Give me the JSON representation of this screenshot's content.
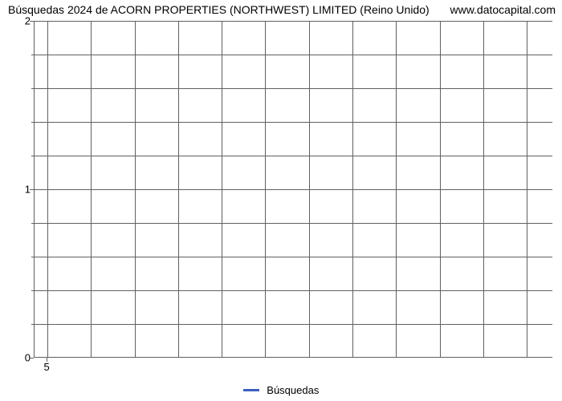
{
  "chart": {
    "type": "line",
    "title_left": "Búsquedas 2024 de ACORN PROPERTIES (NORTHWEST) LIMITED (Reino Unido)",
    "title_right": "www.datocapital.com",
    "title_fontsize": 14,
    "title_color": "#000000",
    "background_color": "#ffffff",
    "axis_color": "#606060",
    "grid_color": "#606060",
    "grid_line_width": 1,
    "y": {
      "min": 0,
      "max": 2,
      "major_ticks": [
        0,
        1,
        2
      ],
      "minor_steps": 5,
      "label_fontsize": 13
    },
    "x": {
      "tick_labels": [
        "5"
      ],
      "tick_positions_pct": [
        2.5
      ],
      "grid_positions_pct": [
        2.5,
        10.9,
        19.3,
        27.7,
        36.1,
        44.5,
        52.9,
        61.3,
        69.7,
        78.1,
        86.5,
        94.9
      ],
      "label_fontsize": 13
    },
    "series": [
      {
        "name": "Búsquedas",
        "color": "#3b5fc0",
        "line_width": 3,
        "data": []
      }
    ],
    "legend": {
      "position": "bottom-center",
      "label": "Búsquedas",
      "swatch_color": "#3b5fc0",
      "fontsize": 13
    }
  }
}
